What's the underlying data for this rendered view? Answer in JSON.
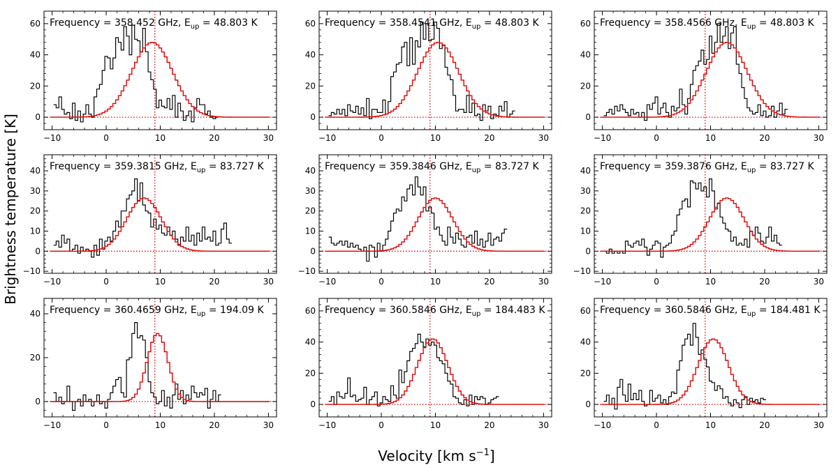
{
  "figure": {
    "xlabel": "Velocity [km s",
    "xlabel_sup": "−1",
    "xlabel_tail": "]",
    "ylabel": "Brightness temperature [K]"
  },
  "chart_data": [
    {
      "type": "line",
      "title_prefix": "Frequency = 358.452 GHz, E",
      "title_sub": "up",
      "title_suffix": " = 48.803 K",
      "xlim": [
        -11.5,
        31.5
      ],
      "ylim": [
        -8,
        68
      ],
      "xticks": [
        -10,
        0,
        10,
        20,
        30
      ],
      "yticks": [
        0,
        20,
        40,
        60
      ],
      "vline": 9,
      "model": {
        "center": 8.5,
        "amplitude": 48,
        "sigma": 3.8
      },
      "observed": {
        "x_start": -9.5,
        "x_step": 0.5,
        "values": [
          8,
          6,
          13,
          5,
          2,
          3,
          -1,
          9,
          -2,
          4,
          -3,
          2,
          8,
          2,
          0,
          13,
          18,
          21,
          30,
          39,
          38,
          31,
          38,
          51,
          48,
          43,
          58,
          52,
          40,
          59,
          50,
          49,
          42,
          57,
          42,
          29,
          24,
          18,
          6,
          11,
          7,
          6,
          12,
          5,
          14,
          0,
          9,
          4,
          -2,
          1,
          4,
          -3,
          6,
          12,
          8,
          8,
          2,
          4,
          0,
          -1,
          0
        ]
      }
    },
    {
      "type": "line",
      "title_prefix": "Frequency = 358.4541 GHz, E",
      "title_sub": "up",
      "title_suffix": " = 48.803 K",
      "xlim": [
        -11.5,
        31.5
      ],
      "ylim": [
        -8,
        68
      ],
      "xticks": [
        -10,
        0,
        10,
        20,
        30
      ],
      "yticks": [
        0,
        20,
        40,
        60
      ],
      "vline": 9,
      "model": {
        "center": 10.5,
        "amplitude": 48,
        "sigma": 3.8
      },
      "observed": {
        "x_start": -9.5,
        "x_step": 0.5,
        "values": [
          1,
          3,
          2,
          5,
          2,
          5,
          1,
          8,
          4,
          3,
          7,
          2,
          6,
          1,
          12,
          -1,
          5,
          5,
          3,
          3,
          11,
          2,
          10,
          26,
          29,
          34,
          35,
          45,
          48,
          33,
          51,
          34,
          49,
          45,
          61,
          50,
          60,
          49,
          50,
          61,
          57,
          44,
          46,
          32,
          27,
          24,
          14,
          4,
          5,
          5,
          3,
          14,
          3,
          9,
          1,
          2,
          -2,
          8,
          4,
          7,
          -1,
          2,
          1,
          7,
          4,
          10,
          0,
          2,
          4
        ]
      }
    },
    {
      "type": "line",
      "title_prefix": "Frequency = 358.4566 GHz, E",
      "title_sub": "up",
      "title_suffix": " = 48.803 K",
      "xlim": [
        -11.5,
        31.5
      ],
      "ylim": [
        -8,
        68
      ],
      "xticks": [
        -10,
        0,
        10,
        20,
        30
      ],
      "yticks": [
        0,
        20,
        40,
        60
      ],
      "vline": 9,
      "model": {
        "center": 13.0,
        "amplitude": 48,
        "sigma": 3.8
      },
      "observed": {
        "x_start": -9.5,
        "x_step": 0.5,
        "values": [
          1,
          3,
          5,
          2,
          7,
          4,
          8,
          5,
          3,
          1,
          5,
          2,
          3,
          0,
          3,
          -2,
          8,
          5,
          9,
          13,
          2,
          6,
          9,
          3,
          0,
          7,
          4,
          6,
          18,
          8,
          2,
          12,
          21,
          30,
          33,
          36,
          43,
          34,
          37,
          52,
          41,
          48,
          60,
          48,
          52,
          58,
          44,
          54,
          58,
          34,
          28,
          19,
          12,
          6,
          4,
          2,
          3,
          8,
          1,
          4,
          0,
          1,
          7,
          0,
          4,
          9,
          2,
          5
        ]
      }
    },
    {
      "type": "line",
      "title_prefix": "Frequency = 359.3815 GHz, E",
      "title_sub": "up",
      "title_suffix": " = 83.727 K",
      "xlim": [
        -11.5,
        31.5
      ],
      "ylim": [
        -11,
        48
      ],
      "xticks": [
        -10,
        0,
        10,
        20,
        30
      ],
      "yticks": [
        -10,
        0,
        10,
        20,
        30,
        40
      ],
      "vline": 9,
      "model": {
        "center": 7.0,
        "amplitude": 26.5,
        "sigma": 3.2
      },
      "observed": {
        "x_start": -9.5,
        "x_step": 0.5,
        "values": [
          3,
          5,
          2,
          8,
          4,
          6,
          0,
          1,
          3,
          -1,
          2,
          0,
          1,
          0,
          -3,
          3,
          -2,
          6,
          1,
          5,
          7,
          5,
          10,
          15,
          12,
          20,
          20,
          26,
          28,
          30,
          36,
          25,
          34,
          23,
          20,
          19,
          12,
          16,
          11,
          13,
          9,
          8,
          12,
          8,
          10,
          6,
          3,
          7,
          5,
          12,
          5,
          8,
          3,
          9,
          5,
          12,
          6,
          7,
          5,
          10,
          3,
          4,
          11,
          14,
          6,
          4
        ]
      }
    },
    {
      "type": "line",
      "title_prefix": "Frequency = 359.3846 GHz, E",
      "title_sub": "up",
      "title_suffix": " = 83.727 K",
      "xlim": [
        -11.5,
        31.5
      ],
      "ylim": [
        -11,
        48
      ],
      "xticks": [
        -10,
        0,
        10,
        20,
        30
      ],
      "yticks": [
        -10,
        0,
        10,
        20,
        30,
        40
      ],
      "vline": 9,
      "model": {
        "center": 10.0,
        "amplitude": 26.5,
        "sigma": 3.2
      },
      "observed": {
        "x_start": -9.5,
        "x_step": 0.5,
        "values": [
          7,
          4,
          3,
          4,
          5,
          3,
          5,
          2,
          4,
          2,
          3,
          1,
          0,
          2,
          -5,
          3,
          2,
          -3,
          4,
          0,
          3,
          6,
          10,
          15,
          19,
          21,
          20,
          27,
          25,
          31,
          33,
          28,
          37,
          32,
          28,
          32,
          20,
          22,
          19,
          11,
          12,
          8,
          5,
          3,
          12,
          7,
          4,
          9,
          6,
          3,
          2,
          7,
          8,
          4,
          10,
          3,
          6,
          2,
          5,
          9,
          3,
          6,
          7,
          5,
          9,
          11
        ]
      }
    },
    {
      "type": "line",
      "title_prefix": "Frequency = 359.3876 GHz, E",
      "title_sub": "up",
      "title_suffix": " = 83.727 K",
      "xlim": [
        -11.5,
        31.5
      ],
      "ylim": [
        -11,
        48
      ],
      "xticks": [
        -10,
        0,
        10,
        20,
        30
      ],
      "yticks": [
        -10,
        0,
        10,
        20,
        30,
        40
      ],
      "vline": 9,
      "model": {
        "center": 13.0,
        "amplitude": 26.5,
        "sigma": 3.2
      },
      "observed": {
        "x_start": -9.5,
        "x_step": 0.5,
        "values": [
          0,
          -1,
          1,
          -1,
          0,
          -1,
          0,
          -1,
          5,
          3,
          2,
          4,
          5,
          3,
          6,
          2,
          -2,
          1,
          3,
          5,
          4,
          -3,
          2,
          3,
          4,
          8,
          10,
          18,
          21,
          25,
          26,
          22,
          35,
          34,
          31,
          34,
          30,
          32,
          27,
          36,
          30,
          21,
          24,
          17,
          14,
          11,
          10,
          5,
          7,
          3,
          4,
          3,
          6,
          2,
          10,
          8,
          12,
          9,
          5,
          4,
          7,
          12,
          5,
          8,
          4,
          3
        ]
      }
    },
    {
      "type": "line",
      "title_prefix": "Frequency = 360.4659 GHz, E",
      "title_sub": "up",
      "title_suffix": " = 194.09 K",
      "xlim": [
        -11.5,
        31.5
      ],
      "ylim": [
        -7,
        47
      ],
      "xticks": [
        -10,
        0,
        10,
        20,
        30
      ],
      "yticks": [
        0,
        20,
        40
      ],
      "vline": 9,
      "model": {
        "center": 9.5,
        "amplitude": 31,
        "sigma": 1.9
      },
      "observed": {
        "x_start": -9.5,
        "x_step": 0.5,
        "values": [
          4,
          0,
          2,
          -1,
          0,
          7,
          0,
          -4,
          0,
          1,
          -2,
          3,
          0,
          1,
          -2,
          0,
          3,
          -1,
          0,
          -3,
          1,
          4,
          7,
          10,
          11,
          4,
          2,
          19,
          20,
          31,
          36,
          29,
          30,
          28,
          20,
          9,
          4,
          2,
          -1,
          0,
          5,
          -2,
          2,
          -3,
          3,
          8,
          1,
          5,
          -1,
          3,
          1,
          7,
          4,
          2,
          4,
          3,
          6,
          -3,
          1,
          5,
          0,
          3
        ]
      }
    },
    {
      "type": "line",
      "title_prefix": "Frequency = 360.5846 GHz, E",
      "title_sub": "up",
      "title_suffix": " = 184.483 K",
      "xlim": [
        -11.5,
        31.5
      ],
      "ylim": [
        -8,
        68
      ],
      "xticks": [
        -10,
        0,
        10,
        20,
        30
      ],
      "yticks": [
        0,
        20,
        40,
        60
      ],
      "vline": 9,
      "model": {
        "center": 9.5,
        "amplitude": 42,
        "sigma": 2.8
      },
      "observed": {
        "x_start": -9.5,
        "x_step": 0.5,
        "values": [
          2,
          5,
          0,
          8,
          5,
          4,
          7,
          17,
          5,
          6,
          2,
          3,
          4,
          11,
          0,
          3,
          5,
          8,
          -1,
          1,
          5,
          3,
          2,
          12,
          6,
          4,
          22,
          14,
          21,
          28,
          34,
          36,
          39,
          45,
          40,
          37,
          42,
          38,
          40,
          38,
          30,
          28,
          26,
          20,
          15,
          13,
          5,
          4,
          1,
          0,
          3,
          -1,
          6,
          0,
          5,
          3,
          5,
          4,
          0,
          1,
          3,
          4,
          5
        ]
      }
    },
    {
      "type": "line",
      "title_prefix": "Frequency = 360.5846 GHz, E",
      "title_sub": "up",
      "title_suffix": " = 184.481 K",
      "xlim": [
        -11.5,
        31.5
      ],
      "ylim": [
        -8,
        68
      ],
      "xticks": [
        -10,
        0,
        10,
        20,
        30
      ],
      "yticks": [
        0,
        20,
        40,
        60
      ],
      "vline": 9,
      "model": {
        "center": 10.5,
        "amplitude": 42,
        "sigma": 2.8
      },
      "observed": {
        "x_start": -9.5,
        "x_step": 0.5,
        "values": [
          2,
          6,
          0,
          4,
          -3,
          11,
          16,
          6,
          2,
          13,
          3,
          7,
          3,
          9,
          2,
          -1,
          0,
          9,
          2,
          4,
          6,
          1,
          3,
          0,
          5,
          8,
          7,
          22,
          28,
          38,
          42,
          45,
          38,
          52,
          43,
          32,
          35,
          29,
          24,
          15,
          14,
          9,
          12,
          10,
          4,
          5,
          1,
          -1,
          3,
          1,
          -2,
          3,
          5,
          0,
          4,
          2,
          3,
          1,
          4,
          3
        ]
      }
    }
  ]
}
